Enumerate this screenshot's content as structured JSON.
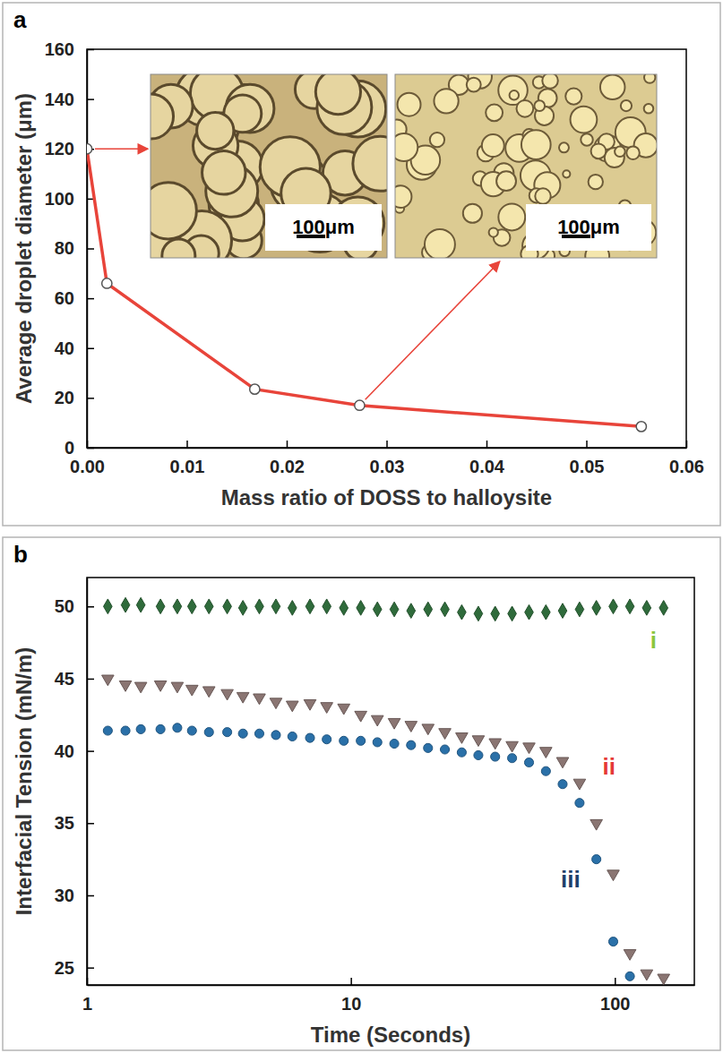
{
  "chart_data": [
    {
      "type": "line",
      "panel_label": "a",
      "x_label": "Mass ratio of DOSS to halloysite",
      "y_label": "Average droplet diameter (μm)",
      "x": [
        0,
        0.002,
        0.0168,
        0.0273,
        0.0555
      ],
      "series": [
        {
          "color": "#e8443a",
          "marker": "circle",
          "values": [
            120,
            66,
            23.5,
            17,
            8.5
          ]
        }
      ],
      "xlim": [
        0,
        0.06
      ],
      "xticks": [
        {
          "value": 0,
          "label": "0.00"
        },
        {
          "value": 0.01,
          "label": "0.01"
        },
        {
          "value": 0.02,
          "label": "0.02"
        },
        {
          "value": 0.03,
          "label": "0.03"
        },
        {
          "value": 0.04,
          "label": "0.04"
        },
        {
          "value": 0.05,
          "label": "0.05"
        },
        {
          "value": 0.06,
          "label": "0.06"
        }
      ],
      "ylim": [
        0,
        160
      ],
      "yticks": [
        0,
        20,
        40,
        60,
        80,
        100,
        120,
        140,
        160
      ],
      "insets": [
        {
          "scale_label": "100μm",
          "point_index": 0
        },
        {
          "scale_label": "100μm",
          "point_index": 3
        }
      ]
    },
    {
      "type": "scatter",
      "panel_label": "b",
      "log": "x",
      "x_label": "Time (Seconds)",
      "y_label": "Interfacial Tension (mN/m)",
      "x": [
        1.2,
        1.4,
        1.6,
        1.9,
        2.2,
        2.5,
        2.9,
        3.4,
        3.9,
        4.5,
        5.2,
        6.0,
        7.0,
        8.1,
        9.4,
        10.9,
        12.6,
        14.6,
        16.9,
        19.6,
        22.7,
        26.3,
        30.4,
        35.2,
        40.8,
        47.3,
        54.8,
        63.4,
        73.5,
        85.1,
        98.6,
        114,
        132,
        153
      ],
      "series": [
        {
          "color": "#2f6b3b",
          "marker": "diamond",
          "values": [
            50,
            50.1,
            50.1,
            50,
            50,
            50,
            50,
            50,
            49.9,
            50,
            50,
            49.9,
            50,
            50,
            49.9,
            49.9,
            49.8,
            49.8,
            49.7,
            49.8,
            49.8,
            49.6,
            49.5,
            49.5,
            49.5,
            49.6,
            49.6,
            49.7,
            49.8,
            49.9,
            50,
            50,
            49.9,
            49.9
          ]
        },
        {
          "color": "#8a7572",
          "marker": "triangle-down",
          "values": [
            45,
            44.6,
            44.5,
            44.6,
            44.5,
            44.3,
            44.2,
            44,
            43.8,
            43.7,
            43.4,
            43.2,
            43.3,
            43.1,
            43,
            42.5,
            42.2,
            42,
            41.8,
            41.6,
            41.3,
            41,
            40.8,
            40.6,
            40.4,
            40.3,
            40,
            39.3,
            37.8,
            35,
            31.5,
            26,
            24.6,
            24.3
          ]
        },
        {
          "color": "#2a70a8",
          "marker": "circle",
          "values": [
            41.4,
            41.4,
            41.5,
            41.5,
            41.6,
            41.4,
            41.3,
            41.3,
            41.2,
            41.2,
            41.1,
            41,
            40.9,
            40.8,
            40.7,
            40.7,
            40.6,
            40.5,
            40.4,
            40.2,
            40.1,
            39.9,
            39.7,
            39.6,
            39.5,
            39.2,
            38.6,
            37.7,
            36.4,
            32.5,
            26.8,
            24.4,
            null,
            null
          ]
        }
      ],
      "xlim": [
        1,
        200
      ],
      "xticks": [
        1,
        10,
        100
      ],
      "ylim": [
        23.8,
        52
      ],
      "yticks": [
        25,
        30,
        35,
        40,
        45,
        50
      ],
      "annotations": [
        {
          "text": "i",
          "x": 140,
          "y": 47.5,
          "color": "#8cc63f"
        },
        {
          "text": "ii",
          "x": 95,
          "y": 38.8,
          "color": "#e53935"
        },
        {
          "text": "iii",
          "x": 68,
          "y": 31,
          "color": "#1e3f6b"
        }
      ]
    }
  ]
}
